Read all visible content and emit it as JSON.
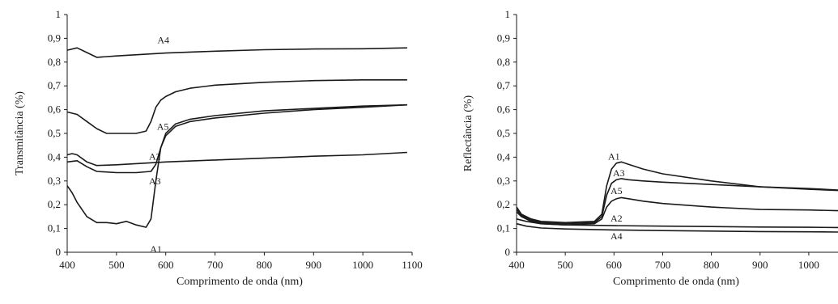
{
  "chart_data": [
    {
      "type": "line",
      "xlabel": "Comprimento de onda (nm)",
      "ylabel": "Transmitância (%)",
      "xlim": [
        400,
        1100
      ],
      "ylim": [
        0,
        1
      ],
      "xticks": [
        "400",
        "500",
        "600",
        "700",
        "800",
        "900",
        "1000",
        "1100"
      ],
      "yticks": [
        "0",
        "0,1",
        "0,2",
        "0,3",
        "0,4",
        "0,5",
        "0,6",
        "0,7",
        "0,8",
        "0,9",
        "1"
      ],
      "grid": false,
      "series": [
        {
          "name": "A4",
          "x": [
            400,
            420,
            440,
            460,
            500,
            600,
            700,
            800,
            900,
            1000,
            1090
          ],
          "y": [
            0.85,
            0.86,
            0.84,
            0.82,
            0.826,
            0.838,
            0.846,
            0.852,
            0.855,
            0.856,
            0.86
          ],
          "label": {
            "x": 595,
            "y": 0.88
          }
        },
        {
          "name": "A5",
          "x": [
            400,
            420,
            440,
            460,
            480,
            500,
            520,
            540,
            560,
            570,
            580,
            590,
            600,
            620,
            650,
            700,
            800,
            900,
            1000,
            1090
          ],
          "y": [
            0.59,
            0.58,
            0.55,
            0.52,
            0.5,
            0.5,
            0.5,
            0.5,
            0.51,
            0.55,
            0.61,
            0.64,
            0.655,
            0.675,
            0.69,
            0.703,
            0.715,
            0.722,
            0.725,
            0.725
          ],
          "label": {
            "x": 594,
            "y": 0.515
          }
        },
        {
          "name": "A2",
          "x": [
            400,
            410,
            420,
            440,
            460,
            500,
            600,
            700,
            800,
            900,
            1000,
            1090
          ],
          "y": [
            0.41,
            0.415,
            0.41,
            0.38,
            0.365,
            0.368,
            0.38,
            0.388,
            0.396,
            0.404,
            0.41,
            0.42
          ],
          "label": {
            "x": 578,
            "y": 0.39
          }
        },
        {
          "name": "A3",
          "x": [
            400,
            420,
            440,
            460,
            500,
            540,
            570,
            580,
            590,
            600,
            620,
            650,
            700,
            800,
            900,
            1000,
            1090
          ],
          "y": [
            0.38,
            0.385,
            0.36,
            0.34,
            0.335,
            0.335,
            0.34,
            0.37,
            0.44,
            0.5,
            0.54,
            0.56,
            0.575,
            0.595,
            0.605,
            0.615,
            0.62
          ],
          "label": {
            "x": 578,
            "y": 0.285
          }
        },
        {
          "name": "A1",
          "x": [
            400,
            410,
            420,
            440,
            460,
            480,
            500,
            520,
            540,
            560,
            570,
            580,
            590,
            600,
            620,
            650,
            700,
            800,
            900,
            1000,
            1090
          ],
          "y": [
            0.28,
            0.25,
            0.21,
            0.15,
            0.125,
            0.125,
            0.12,
            0.13,
            0.115,
            0.105,
            0.14,
            0.3,
            0.44,
            0.49,
            0.53,
            0.55,
            0.565,
            0.585,
            0.6,
            0.61,
            0.62
          ],
          "label": {
            "x": 580,
            "y": 0.0
          }
        }
      ]
    },
    {
      "type": "line",
      "xlabel": "Comprimento de onda (nm)",
      "ylabel": "Reflectância (%)",
      "xlim": [
        400,
        1060
      ],
      "ylim": [
        0,
        1
      ],
      "xticks": [
        "400",
        "500",
        "600",
        "700",
        "800",
        "900",
        "1000"
      ],
      "yticks": [
        "0",
        "0,1",
        "0,2",
        "0,3",
        "0,4",
        "0,5",
        "0,6",
        "0,7",
        "0,8",
        "0,9",
        "1"
      ],
      "grid": false,
      "series": [
        {
          "name": "A1",
          "x": [
            395,
            410,
            430,
            450,
            500,
            560,
            575,
            585,
            595,
            605,
            615,
            630,
            660,
            700,
            800,
            900,
            1000,
            1060
          ],
          "y": [
            0.19,
            0.16,
            0.14,
            0.13,
            0.125,
            0.13,
            0.16,
            0.28,
            0.35,
            0.375,
            0.38,
            0.37,
            0.35,
            0.33,
            0.3,
            0.275,
            0.265,
            0.26
          ],
          "label": {
            "x": 600,
            "y": 0.39
          }
        },
        {
          "name": "A3",
          "x": [
            395,
            410,
            430,
            450,
            500,
            560,
            575,
            585,
            595,
            605,
            615,
            630,
            660,
            700,
            800,
            900,
            1000,
            1060
          ],
          "y": [
            0.18,
            0.155,
            0.135,
            0.125,
            0.12,
            0.125,
            0.15,
            0.24,
            0.29,
            0.305,
            0.31,
            0.305,
            0.3,
            0.295,
            0.285,
            0.275,
            0.268,
            0.262
          ],
          "label": {
            "x": 610,
            "y": 0.32
          }
        },
        {
          "name": "A5",
          "x": [
            395,
            410,
            430,
            450,
            500,
            560,
            575,
            585,
            595,
            605,
            615,
            630,
            660,
            700,
            800,
            900,
            1000,
            1060
          ],
          "y": [
            0.17,
            0.15,
            0.13,
            0.12,
            0.115,
            0.12,
            0.14,
            0.19,
            0.215,
            0.225,
            0.23,
            0.225,
            0.215,
            0.205,
            0.19,
            0.18,
            0.178,
            0.175
          ],
          "label": {
            "x": 605,
            "y": 0.245
          }
        },
        {
          "name": "A2",
          "x": [
            395,
            420,
            450,
            500,
            600,
            700,
            800,
            900,
            1000,
            1060
          ],
          "y": [
            0.14,
            0.13,
            0.12,
            0.115,
            0.112,
            0.11,
            0.108,
            0.106,
            0.105,
            0.104
          ],
          "label": {
            "x": 605,
            "y": 0.13
          }
        },
        {
          "name": "A4",
          "x": [
            395,
            420,
            450,
            500,
            600,
            700,
            800,
            900,
            1000,
            1060
          ],
          "y": [
            0.12,
            0.11,
            0.102,
            0.098,
            0.094,
            0.091,
            0.089,
            0.087,
            0.086,
            0.085
          ],
          "label": {
            "x": 605,
            "y": 0.055
          }
        }
      ]
    }
  ]
}
